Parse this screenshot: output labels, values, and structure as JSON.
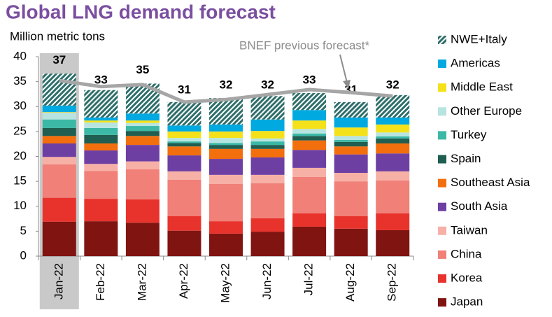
{
  "chart_data": {
    "type": "stacked-bar",
    "title": "Global LNG demand forecast",
    "y_label": "Million metric tons",
    "categories": [
      "Jan-22",
      "Feb-22",
      "Mar-22",
      "Apr-22",
      "May-22",
      "Jun-22",
      "Jul-22",
      "Aug-22",
      "Sep-22"
    ],
    "highlight_category": "Jan-22",
    "ylim": [
      0,
      40
    ],
    "yticks": [
      0,
      5,
      10,
      15,
      20,
      25,
      30,
      35,
      40
    ],
    "grid": false,
    "legend": "right",
    "series": [
      {
        "name": "Japan",
        "color": "#7f1411",
        "values": [
          6.9,
          7.0,
          6.7,
          5.1,
          4.5,
          4.9,
          5.9,
          5.5,
          5.2
        ]
      },
      {
        "name": "Korea",
        "color": "#e8332d",
        "values": [
          4.8,
          4.5,
          4.7,
          2.9,
          2.5,
          2.7,
          2.7,
          2.5,
          3.4
        ]
      },
      {
        "name": "China",
        "color": "#f08078",
        "values": [
          6.7,
          5.6,
          6.0,
          7.3,
          7.5,
          7.0,
          7.3,
          7.0,
          6.6
        ]
      },
      {
        "name": "Taiwan",
        "color": "#f7b0a6",
        "values": [
          1.5,
          1.4,
          1.6,
          1.7,
          1.8,
          1.7,
          1.8,
          1.7,
          1.8
        ]
      },
      {
        "name": "South Asia",
        "color": "#6e3fa3",
        "values": [
          2.7,
          2.7,
          3.3,
          3.2,
          3.2,
          3.5,
          3.6,
          3.7,
          3.6
        ]
      },
      {
        "name": "Southeast Asia",
        "color": "#f36f0d",
        "values": [
          1.5,
          1.4,
          1.8,
          1.8,
          2.0,
          1.7,
          1.9,
          1.6,
          2.0
        ]
      },
      {
        "name": "Spain",
        "color": "#1f5e50",
        "values": [
          1.6,
          1.7,
          1.0,
          0.7,
          0.8,
          0.8,
          0.9,
          0.9,
          1.0
        ]
      },
      {
        "name": "Turkey",
        "color": "#3bb8a6",
        "values": [
          1.7,
          1.4,
          1.0,
          0.3,
          0.4,
          0.7,
          0.5,
          0.4,
          0.4
        ]
      },
      {
        "name": "Other Europe",
        "color": "#b7e4e1",
        "values": [
          1.4,
          1.1,
          0.6,
          0.7,
          1.0,
          0.6,
          0.9,
          0.8,
          0.8
        ]
      },
      {
        "name": "Middle East",
        "color": "#f5e11a",
        "values": [
          0.1,
          0.4,
          0.5,
          1.3,
          1.3,
          1.5,
          1.7,
          1.7,
          1.6
        ]
      },
      {
        "name": "Americas",
        "color": "#00a9e0",
        "values": [
          1.3,
          0.6,
          1.4,
          1.2,
          1.4,
          2.3,
          2.1,
          2.0,
          1.4
        ]
      },
      {
        "name": "NWE+Italy",
        "color": "#2e6e6a",
        "pattern": "hatch",
        "values": [
          6.4,
          5.5,
          6.0,
          4.7,
          5.3,
          4.7,
          3.4,
          3.1,
          4.5
        ]
      }
    ],
    "totals": [
      37,
      33,
      35,
      31,
      32,
      32,
      33,
      31,
      32
    ],
    "line": {
      "name": "BNEF previous forecast*",
      "color": "#a6a6a6",
      "values": [
        35.2,
        34.0,
        34.4,
        30.9,
        31.4,
        32.4,
        33.4,
        32.8,
        32.1
      ]
    }
  }
}
